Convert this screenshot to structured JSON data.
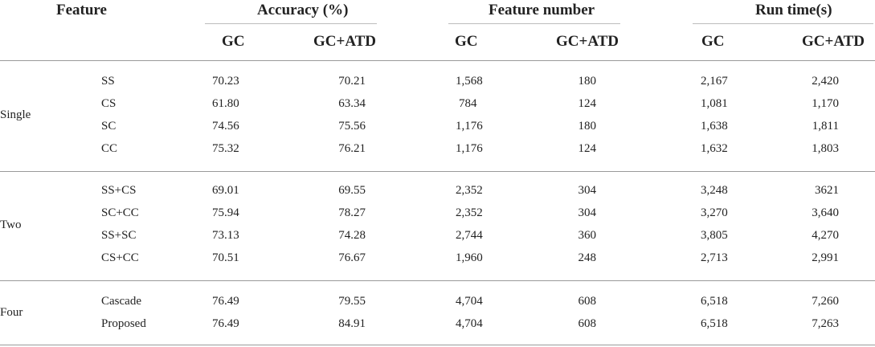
{
  "header": {
    "feature": "Feature",
    "accuracy": "Accuracy (%)",
    "feature_number": "Feature number",
    "run_time": "Run time(s)",
    "sub": [
      "GC",
      "GC+ATD",
      "GC",
      "GC+ATD",
      "GC",
      "GC+ATD"
    ]
  },
  "groups": [
    {
      "name": "Single",
      "rows": [
        {
          "feature": "SS",
          "acc_gc": "70.23",
          "acc_atd": "70.21",
          "num_gc": "1,568",
          "num_atd": "180",
          "time_gc": "2,167",
          "time_atd": "2,420"
        },
        {
          "feature": "CS",
          "acc_gc": "61.80",
          "acc_atd": "63.34",
          "num_gc": "784",
          "num_atd": "124",
          "time_gc": "1,081",
          "time_atd": "1,170"
        },
        {
          "feature": "SC",
          "acc_gc": "74.56",
          "acc_atd": "75.56",
          "num_gc": "1,176",
          "num_atd": "180",
          "time_gc": "1,638",
          "time_atd": "1,811"
        },
        {
          "feature": "CC",
          "acc_gc": "75.32",
          "acc_atd": "76.21",
          "num_gc": "1,176",
          "num_atd": "124",
          "time_gc": "1,632",
          "time_atd": "1,803"
        }
      ]
    },
    {
      "name": "Two",
      "rows": [
        {
          "feature": "SS+CS",
          "acc_gc": "69.01",
          "acc_atd": "69.55",
          "num_gc": "2,352",
          "num_atd": "304",
          "time_gc": "3,248",
          "time_atd": "3621"
        },
        {
          "feature": "SC+CC",
          "acc_gc": "75.94",
          "acc_atd": "78.27",
          "num_gc": "2,352",
          "num_atd": "304",
          "time_gc": "3,270",
          "time_atd": "3,640"
        },
        {
          "feature": "SS+SC",
          "acc_gc": "73.13",
          "acc_atd": "74.28",
          "num_gc": "2,744",
          "num_atd": "360",
          "time_gc": "3,805",
          "time_atd": "4,270"
        },
        {
          "feature": "CS+CC",
          "acc_gc": "70.51",
          "acc_atd": "76.67",
          "num_gc": "1,960",
          "num_atd": "248",
          "time_gc": "2,713",
          "time_atd": "2,991"
        }
      ]
    },
    {
      "name": "Four",
      "rows": [
        {
          "feature": "Cascade",
          "acc_gc": "76.49",
          "acc_atd": "79.55",
          "num_gc": "4,704",
          "num_atd": "608",
          "time_gc": "6,518",
          "time_atd": "7,260"
        },
        {
          "feature": "Proposed",
          "acc_gc": "76.49",
          "acc_atd": "84.91",
          "num_gc": "4,704",
          "num_atd": "608",
          "time_gc": "6,518",
          "time_atd": "7,263"
        }
      ]
    }
  ]
}
